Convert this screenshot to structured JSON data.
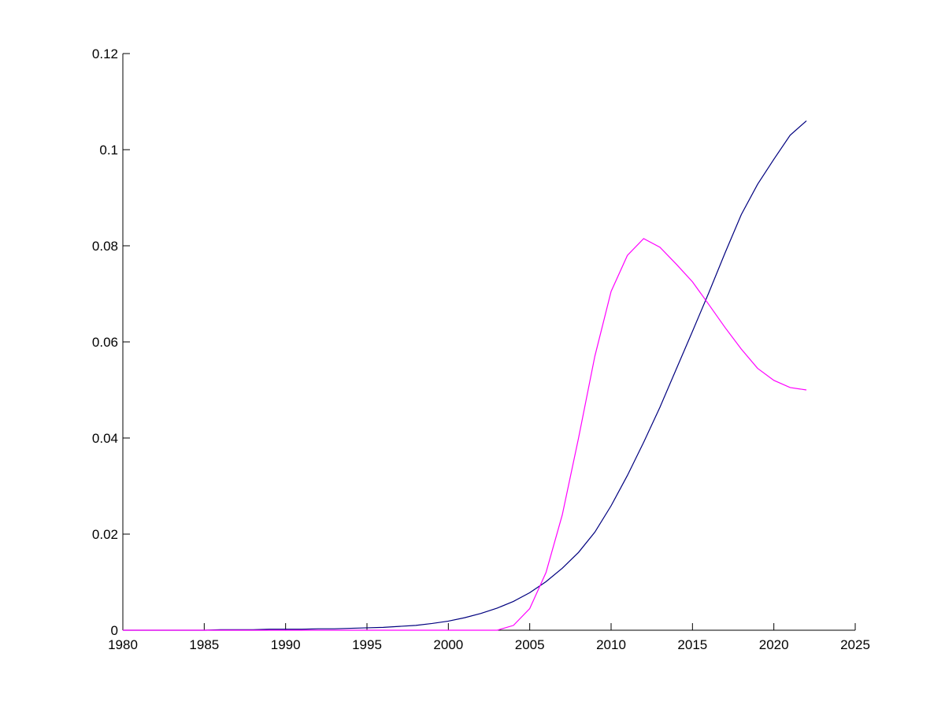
{
  "chart_data": {
    "type": "line",
    "x": [
      1980,
      1981,
      1982,
      1983,
      1984,
      1985,
      1986,
      1987,
      1988,
      1989,
      1990,
      1991,
      1992,
      1993,
      1994,
      1995,
      1996,
      1997,
      1998,
      1999,
      2000,
      2001,
      2002,
      2003,
      2004,
      2005,
      2006,
      2007,
      2008,
      2009,
      2010,
      2011,
      2012,
      2013,
      2014,
      2015,
      2016,
      2017,
      2018,
      2019,
      2020,
      2021,
      2022
    ],
    "series": [
      {
        "color": "#00007f",
        "values": [
          0,
          0,
          0,
          0,
          0,
          0,
          0.0001,
          0.0001,
          0.0001,
          0.0002,
          0.0002,
          0.0002,
          0.0003,
          0.0003,
          0.0004,
          0.0005,
          0.0006,
          0.0008,
          0.001,
          0.0014,
          0.0019,
          0.0026,
          0.0035,
          0.0046,
          0.006,
          0.0078,
          0.0101,
          0.0129,
          0.0162,
          0.0204,
          0.0259,
          0.0322,
          0.0391,
          0.0464,
          0.0543,
          0.0622,
          0.0702,
          0.0785,
          0.0865,
          0.0928,
          0.098,
          0.103,
          0.106
        ]
      },
      {
        "color": "#ff00ff",
        "values": [
          0,
          0,
          0,
          0,
          0,
          0,
          0,
          0,
          0,
          0,
          0,
          0,
          0,
          0,
          0,
          0,
          0,
          0,
          0,
          0,
          0,
          0,
          0,
          0,
          0.001,
          0.0045,
          0.012,
          0.024,
          0.04,
          0.057,
          0.0705,
          0.078,
          0.0815,
          0.0797,
          0.0762,
          0.0725,
          0.0678,
          0.063,
          0.0585,
          0.0545,
          0.052,
          0.0505,
          0.05
        ]
      }
    ],
    "xlim": [
      1980,
      2025
    ],
    "xticks": [
      1980,
      1985,
      1990,
      1995,
      2000,
      2005,
      2010,
      2015,
      2020,
      2025
    ],
    "ylim": [
      0,
      0.12
    ],
    "yticks": [
      0,
      0.02,
      0.04,
      0.06,
      0.08,
      0.1,
      0.12
    ]
  }
}
